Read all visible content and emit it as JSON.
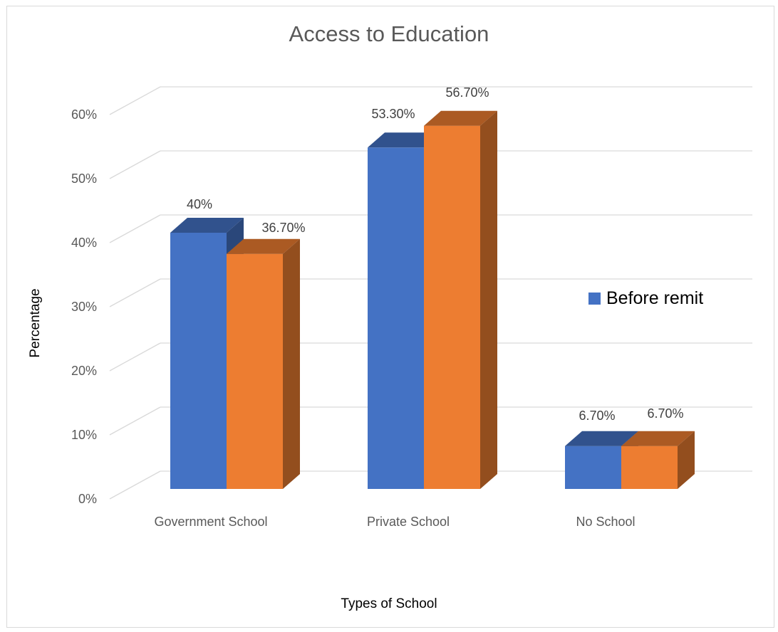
{
  "chart_data": {
    "type": "bar",
    "title": "Access to Education",
    "xlabel": "Types of School",
    "ylabel": "Percentage",
    "categories": [
      "Government School",
      "Private School",
      "No School"
    ],
    "ylim": [
      0,
      60
    ],
    "yticks": [
      "0%",
      "10%",
      "20%",
      "30%",
      "40%",
      "50%",
      "60%"
    ],
    "grid": true,
    "legend_position": "right",
    "series": [
      {
        "name": "Before remit",
        "color": "#4472c4",
        "values": [
          40,
          53.3,
          6.7
        ],
        "labels": [
          "40%",
          "53.30%",
          "6.70%"
        ]
      },
      {
        "color": "#ed7d31",
        "values": [
          36.7,
          56.7,
          6.7
        ],
        "labels": [
          "36.70%",
          "56.70%",
          "6.70%"
        ]
      }
    ]
  }
}
